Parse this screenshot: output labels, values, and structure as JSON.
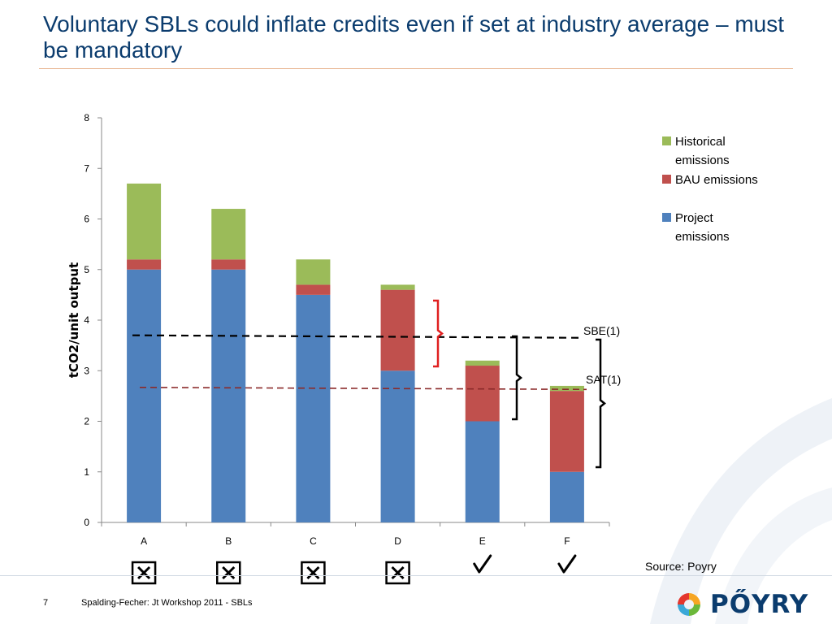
{
  "slide": {
    "title": "Voluntary SBLs could inflate credits even if set at industry average – must be mandatory",
    "source": "Source: Poyry",
    "page_number": "7",
    "footer": "Spalding-Fecher: Jt Workshop 2011 - SBLs",
    "logo_text": "PŐYRY"
  },
  "chart_data": {
    "type": "bar",
    "stacked": true,
    "categories": [
      "A",
      "B",
      "C",
      "D",
      "E",
      "F"
    ],
    "series": [
      {
        "name": "Project emissions",
        "color": "#4f81bd",
        "values": [
          5.0,
          5.0,
          4.5,
          3.0,
          2.0,
          1.0
        ]
      },
      {
        "name": "BAU emissions",
        "color": "#c0504d",
        "values": [
          0.2,
          0.2,
          0.2,
          1.6,
          1.1,
          1.6
        ]
      },
      {
        "name": "Historical emissions",
        "color": "#9bbb59",
        "values": [
          1.5,
          1.0,
          0.5,
          0.1,
          0.1,
          0.1
        ]
      }
    ],
    "legend_order": [
      "Historical emissions",
      "BAU emissions",
      "Project emissions"
    ],
    "legend_position": "right",
    "ylabel": "tCO2/unit output",
    "xlabel": "",
    "ylim": [
      0,
      8
    ],
    "yticks": [
      0,
      1,
      2,
      3,
      4,
      5,
      6,
      7,
      8
    ],
    "reference_lines": [
      {
        "name": "SBE(1)",
        "label": "SBE(1)",
        "y_start": 3.7,
        "y_end": 3.65,
        "color": "#000000"
      },
      {
        "name": "SAT(1)",
        "label": "SAT(1)",
        "y_start": 2.67,
        "y_end": 2.63,
        "color": "#8b2a2a"
      }
    ],
    "verdicts": [
      {
        "category": "A",
        "status": "fail",
        "icon": "boxed-x-icon"
      },
      {
        "category": "B",
        "status": "fail",
        "icon": "boxed-x-icon"
      },
      {
        "category": "C",
        "status": "fail",
        "icon": "boxed-x-icon"
      },
      {
        "category": "D",
        "status": "fail",
        "icon": "boxed-x-icon"
      },
      {
        "category": "E",
        "status": "pass",
        "icon": "check-icon"
      },
      {
        "category": "F",
        "status": "pass",
        "icon": "check-icon"
      }
    ]
  }
}
